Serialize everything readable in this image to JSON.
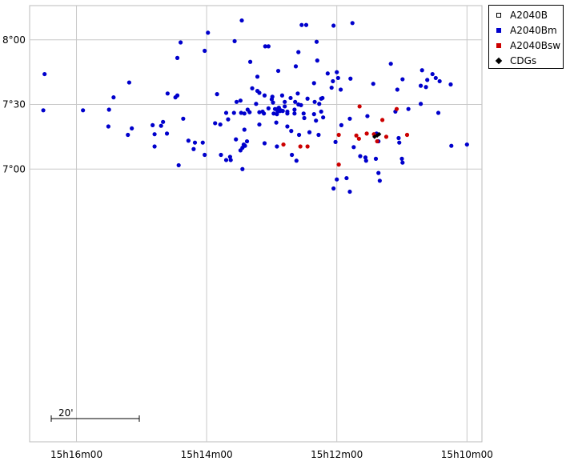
{
  "chart_data": {
    "type": "scatter",
    "title": "",
    "xlabel": "",
    "ylabel": "",
    "x_unit": "minutes of RA (15h offset)",
    "y_unit": "arcmin of Dec (7° offset)",
    "xlim": [
      16.72,
      9.77
    ],
    "ylim": [
      -42.2,
      25.3
    ],
    "grid": true,
    "x_ticks": [
      {
        "value": 16,
        "label": "15h16m00"
      },
      {
        "value": 14,
        "label": "15h14m00"
      },
      {
        "value": 12,
        "label": "15h12m00"
      },
      {
        "value": 10,
        "label": "15h10m00"
      }
    ],
    "y_ticks": [
      {
        "value": 20,
        "label": "8°00"
      },
      {
        "value": 10,
        "label": "7°30"
      },
      {
        "value": 0,
        "label": "7°00"
      }
    ],
    "scale_bar": {
      "label": "20'",
      "length_arcmin": 20
    },
    "legend_position": "top-right",
    "series": [
      {
        "name": "A2040B",
        "marker": "open-square",
        "color": "#000000",
        "points": []
      },
      {
        "name": "A2040Bm",
        "marker": "dot",
        "color": "#0000cc",
        "points": [
          [
            16.49,
            14.7
          ],
          [
            13.57,
            19.8
          ],
          [
            12.31,
            19.7
          ],
          [
            13.1,
            19.0
          ],
          [
            13.05,
            19.0
          ],
          [
            14.03,
            18.3
          ],
          [
            14.45,
            17.2
          ],
          [
            12.59,
            18.1
          ],
          [
            13.33,
            16.6
          ],
          [
            12.63,
            15.9
          ],
          [
            12.9,
            15.2
          ],
          [
            13.22,
            14.3
          ],
          [
            12.14,
            14.8
          ],
          [
            12.0,
            15.0
          ],
          [
            11.79,
            14.0
          ],
          [
            11.17,
            16.3
          ],
          [
            10.69,
            15.3
          ],
          [
            10.53,
            14.7
          ],
          [
            10.48,
            14.1
          ],
          [
            10.61,
            13.8
          ],
          [
            10.42,
            13.6
          ],
          [
            10.71,
            12.9
          ],
          [
            10.63,
            12.7
          ],
          [
            10.25,
            13.1
          ],
          [
            11.44,
            13.2
          ],
          [
            11.07,
            12.3
          ],
          [
            11.98,
            14.1
          ],
          [
            12.06,
            13.6
          ],
          [
            12.08,
            12.6
          ],
          [
            11.94,
            12.3
          ],
          [
            12.35,
            13.3
          ],
          [
            15.19,
            13.4
          ],
          [
            14.6,
            11.7
          ],
          [
            14.48,
            11.1
          ],
          [
            14.45,
            11.4
          ],
          [
            15.43,
            11.1
          ],
          [
            13.84,
            11.6
          ],
          [
            13.19,
            11.8
          ],
          [
            13.22,
            12.1
          ],
          [
            13.3,
            12.5
          ],
          [
            13.11,
            11.4
          ],
          [
            12.99,
            11.2
          ],
          [
            12.84,
            11.4
          ],
          [
            12.6,
            11.7
          ],
          [
            12.71,
            11.0
          ],
          [
            12.22,
            11.0
          ],
          [
            12.24,
            10.9
          ],
          [
            12.34,
            10.4
          ],
          [
            12.45,
            10.9
          ],
          [
            13.0,
            10.8
          ],
          [
            12.8,
            10.4
          ],
          [
            12.64,
            10.4
          ],
          [
            12.59,
            10.0
          ],
          [
            12.55,
            9.9
          ],
          [
            12.27,
            10.1
          ],
          [
            13.24,
            10.1
          ],
          [
            13.48,
            10.6
          ],
          [
            12.98,
            10.3
          ],
          [
            13.54,
            10.4
          ],
          [
            16.51,
            9.1
          ],
          [
            15.9,
            9.1
          ],
          [
            15.5,
            9.2
          ],
          [
            13.37,
            9.2
          ],
          [
            13.34,
            8.8
          ],
          [
            13.42,
            8.6
          ],
          [
            13.47,
            8.7
          ],
          [
            13.58,
            8.7
          ],
          [
            13.7,
            8.7
          ],
          [
            13.67,
            7.7
          ],
          [
            13.87,
            7.1
          ],
          [
            13.79,
            6.9
          ],
          [
            14.7,
            6.7
          ],
          [
            14.83,
            6.8
          ],
          [
            15.51,
            6.6
          ],
          [
            15.15,
            6.3
          ],
          [
            14.67,
            7.3
          ],
          [
            14.36,
            7.8
          ],
          [
            13.19,
            8.8
          ],
          [
            13.12,
            8.6
          ],
          [
            13.14,
            8.9
          ],
          [
            13.05,
            9.4
          ],
          [
            12.95,
            9.3
          ],
          [
            12.89,
            9.5
          ],
          [
            12.87,
            9.0
          ],
          [
            12.76,
            8.9
          ],
          [
            12.76,
            8.6
          ],
          [
            12.92,
            8.5
          ],
          [
            12.97,
            8.6
          ],
          [
            12.91,
            8.9
          ],
          [
            12.86,
            9.1
          ],
          [
            12.9,
            9.4
          ],
          [
            12.83,
            9.0
          ],
          [
            12.8,
            9.7
          ],
          [
            12.65,
            9.2
          ],
          [
            12.65,
            8.6
          ],
          [
            12.51,
            8.6
          ],
          [
            12.35,
            8.5
          ],
          [
            12.24,
            8.9
          ],
          [
            12.21,
            8.0
          ],
          [
            12.32,
            7.5
          ],
          [
            12.5,
            7.9
          ],
          [
            12.93,
            7.2
          ],
          [
            13.19,
            6.9
          ],
          [
            13.42,
            6.1
          ],
          [
            12.76,
            6.6
          ],
          [
            12.7,
            5.9
          ],
          [
            12.58,
            5.3
          ],
          [
            12.42,
            5.7
          ],
          [
            12.28,
            5.3
          ],
          [
            11.93,
            6.8
          ],
          [
            11.8,
            7.8
          ],
          [
            11.53,
            8.2
          ],
          [
            11.1,
            8.9
          ],
          [
            10.9,
            9.3
          ],
          [
            10.71,
            10.1
          ],
          [
            10.44,
            8.7
          ],
          [
            11.39,
            5.5
          ],
          [
            11.05,
            4.8
          ],
          [
            11.04,
            4.1
          ],
          [
            11.36,
            4.3
          ],
          [
            10.24,
            3.6
          ],
          [
            10.0,
            3.8
          ],
          [
            11.74,
            3.4
          ],
          [
            12.02,
            4.2
          ],
          [
            13.38,
            4.3
          ],
          [
            14.28,
            4.4
          ],
          [
            14.61,
            5.5
          ],
          [
            14.8,
            5.4
          ],
          [
            15.21,
            5.3
          ],
          [
            14.06,
            4.1
          ],
          [
            14.8,
            3.5
          ],
          [
            14.2,
            3.1
          ],
          [
            14.18,
            4.1
          ],
          [
            13.41,
            3.6
          ],
          [
            13.43,
            3.8
          ],
          [
            13.11,
            4.0
          ],
          [
            13.55,
            4.6
          ],
          [
            13.45,
            3.3
          ],
          [
            13.48,
            2.9
          ],
          [
            12.92,
            3.5
          ],
          [
            14.03,
            2.2
          ],
          [
            13.64,
            1.9
          ],
          [
            13.63,
            1.4
          ],
          [
            13.7,
            1.4
          ],
          [
            14.43,
            0.6
          ],
          [
            12.69,
            2.2
          ],
          [
            11.64,
            2.0
          ],
          [
            11.56,
            1.8
          ],
          [
            11.55,
            1.3
          ],
          [
            12.62,
            1.3
          ],
          [
            13.78,
            2.2
          ],
          [
            11.4,
            1.6
          ],
          [
            10.99,
            1.0
          ],
          [
            13.45,
            0.0
          ],
          [
            11.36,
            -0.6
          ],
          [
            12.0,
            -1.6
          ],
          [
            11.85,
            -1.4
          ],
          [
            11.34,
            -1.8
          ],
          [
            12.05,
            -3.0
          ],
          [
            11.8,
            -3.5
          ],
          [
            11.0,
            1.6
          ],
          [
            13.46,
            23.0
          ],
          [
            12.54,
            22.3
          ],
          [
            12.47,
            22.3
          ],
          [
            12.05,
            22.2
          ],
          [
            11.76,
            22.6
          ],
          [
            13.98,
            21.1
          ],
          [
            14.4,
            19.6
          ],
          [
            12.3,
            16.8
          ],
          [
            10.99,
            13.9
          ]
        ]
      },
      {
        "name": "A2040Bsw",
        "marker": "dot",
        "color": "#cc0000",
        "points": [
          [
            11.65,
            9.7
          ],
          [
            11.08,
            9.3
          ],
          [
            11.3,
            7.6
          ],
          [
            11.54,
            5.5
          ],
          [
            11.24,
            5.0
          ],
          [
            11.43,
            5.4
          ],
          [
            11.7,
            5.2
          ],
          [
            11.97,
            5.3
          ],
          [
            11.66,
            4.7
          ],
          [
            11.38,
            4.3
          ],
          [
            12.82,
            3.8
          ],
          [
            12.56,
            3.5
          ],
          [
            12.45,
            3.5
          ],
          [
            11.97,
            0.7
          ],
          [
            10.92,
            5.3
          ]
        ]
      },
      {
        "name": "CDGs",
        "marker": "diamond",
        "color": "#000000",
        "points": [
          [
            11.42,
            5.0
          ],
          [
            11.38,
            5.2
          ],
          [
            11.35,
            5.4
          ]
        ]
      }
    ]
  }
}
